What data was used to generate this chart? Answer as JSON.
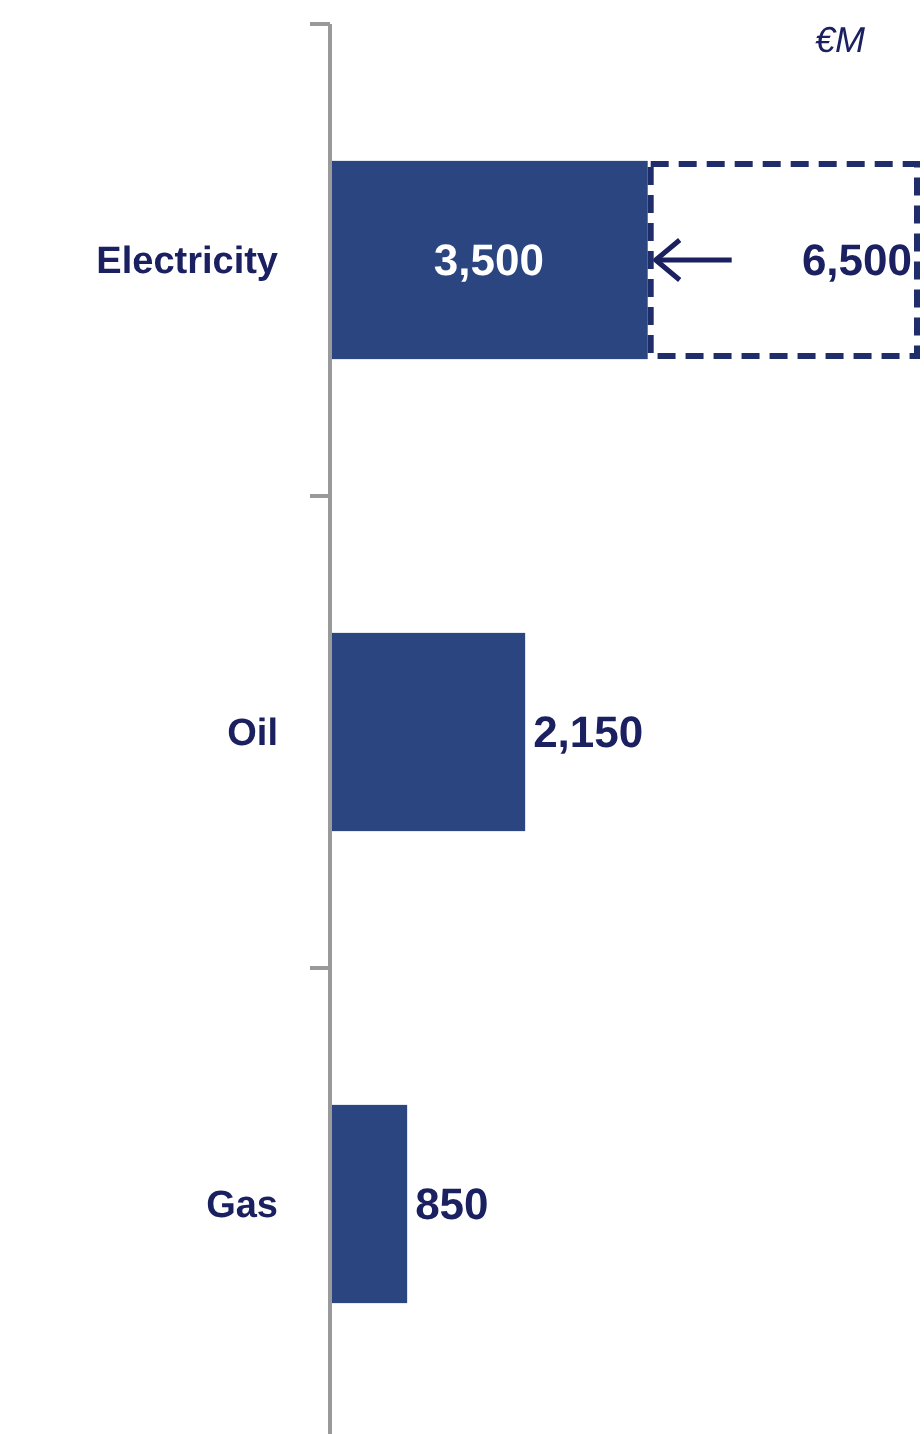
{
  "chart_data": {
    "type": "bar",
    "orientation": "horizontal",
    "stacked": true,
    "categories": [
      "Electricity",
      "Oil",
      "Gas"
    ],
    "series": [
      {
        "color": "#2b4580",
        "values": [
          3500,
          2150,
          850
        ],
        "value_labels": [
          "3,500",
          "2,150",
          "850"
        ]
      },
      {
        "color": "#1f2d6b",
        "line_style": "dashed",
        "values": [
          3000,
          null,
          null
        ]
      }
    ],
    "totals": [
      "6,500",
      null,
      null
    ],
    "annotations": [
      "€M"
    ]
  }
}
